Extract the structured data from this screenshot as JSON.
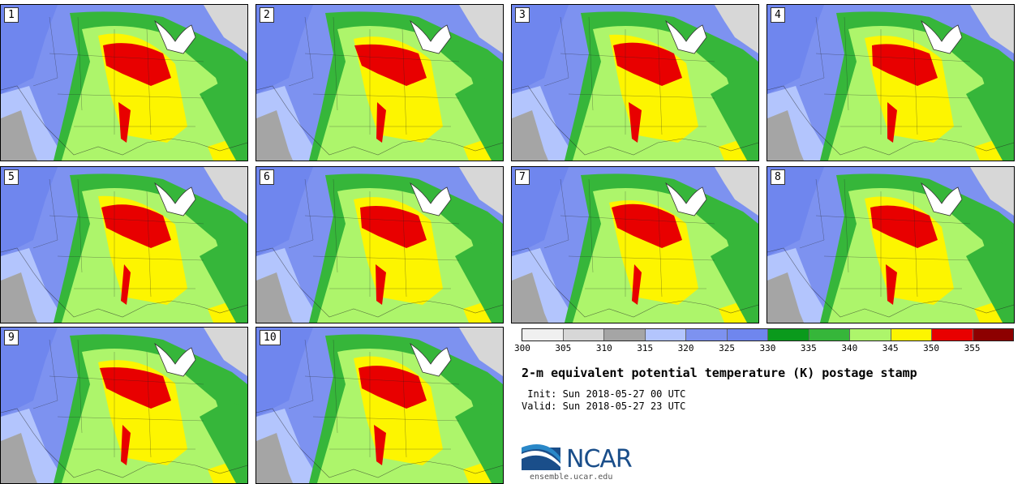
{
  "panels": [
    {
      "label": "1"
    },
    {
      "label": "2"
    },
    {
      "label": "3"
    },
    {
      "label": "4"
    },
    {
      "label": "5"
    },
    {
      "label": "6"
    },
    {
      "label": "7"
    },
    {
      "label": "8"
    },
    {
      "label": "9"
    },
    {
      "label": "10"
    }
  ],
  "colorbar": {
    "colors": [
      "#f0f0f0",
      "#d7d7d7",
      "#a5a5a5",
      "#b3c5fd",
      "#7d92f0",
      "#6f86ee",
      "#0a9a1c",
      "#36b63a",
      "#adf56b",
      "#fdf500",
      "#e80000",
      "#8d0000"
    ],
    "labels": [
      "300",
      "305",
      "310",
      "315",
      "320",
      "325",
      "330",
      "335",
      "340",
      "345",
      "350",
      "355"
    ]
  },
  "title": "2-m equivalent potential temperature (K) postage stamp",
  "init": " Init: Sun 2018-05-27 00 UTC",
  "valid": "Valid: Sun 2018-05-27 23 UTC",
  "logo_text": "NCAR",
  "url": "ensemble.ucar.edu"
}
